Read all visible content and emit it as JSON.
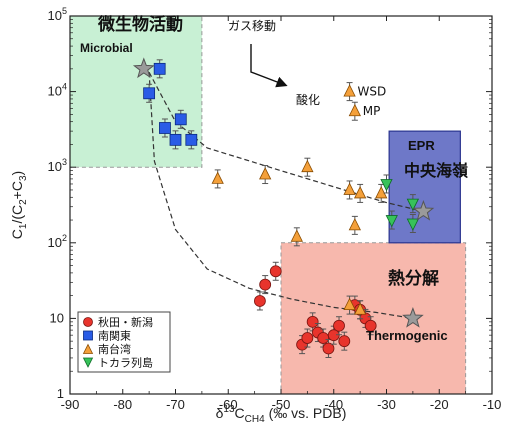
{
  "chart_data": {
    "type": "scatter",
    "xlabel": {
      "main": "δ",
      "sup": "13",
      "mid": "C",
      "sub": "CH4",
      "tail": " (‰ vs. PDB)"
    },
    "ylabel": {
      "main": "C",
      "sub1": "1",
      "mid": "/(C",
      "sub2": "2",
      "mid2": "+C",
      "sub3": "3",
      "tail": ")"
    },
    "xlim": [
      -90,
      -10
    ],
    "ylim": [
      1,
      100000
    ],
    "yscale": "log",
    "x_ticks": [
      -90,
      -80,
      -70,
      -60,
      -50,
      -40,
      -30,
      -20,
      -10
    ],
    "y_ticks": [
      {
        "value": 1,
        "base": "1",
        "exp": ""
      },
      {
        "value": 10,
        "base": "10",
        "exp": ""
      },
      {
        "value": 100,
        "base": "10",
        "exp": "2"
      },
      {
        "value": 1000,
        "base": "10",
        "exp": "3"
      },
      {
        "value": 10000,
        "base": "10",
        "exp": "4"
      },
      {
        "value": 100000,
        "base": "10",
        "exp": "5"
      }
    ],
    "regions": [
      {
        "name": "microbial",
        "x": [
          -90,
          -65
        ],
        "y": [
          1000,
          100000
        ],
        "fill": "#c8f0d4",
        "stroke": "#999999",
        "label_jp": "微生物活動",
        "label_en": "Microbial"
      },
      {
        "name": "thermogenic",
        "x": [
          -50,
          -15
        ],
        "y": [
          1,
          100
        ],
        "fill": "#f7b8ad",
        "stroke": "#999999",
        "label_jp": "熱分解",
        "label_en": "Thermogenic"
      },
      {
        "name": "epr",
        "x": [
          -29.5,
          -16
        ],
        "y": [
          100,
          3000
        ],
        "fill": "#6e78c8",
        "stroke": "#2b3590",
        "label_en": "EPR",
        "label_jp": "中央海嶺"
      }
    ],
    "series": [
      {
        "name": "秋田・新潟",
        "marker": "circle",
        "color": "#e8342c",
        "points": [
          [
            -54,
            17
          ],
          [
            -53,
            28
          ],
          [
            -51,
            42
          ],
          [
            -46,
            4.5
          ],
          [
            -45,
            5.5
          ],
          [
            -44,
            9
          ],
          [
            -43,
            6.5
          ],
          [
            -42,
            5.5
          ],
          [
            -41,
            4
          ],
          [
            -40,
            6
          ],
          [
            -39,
            8
          ],
          [
            -38,
            5
          ],
          [
            -36,
            15
          ],
          [
            -35,
            13
          ],
          [
            -34,
            10
          ],
          [
            -33,
            8
          ]
        ]
      },
      {
        "name": "南関東",
        "marker": "square",
        "color": "#2a5ce6",
        "points": [
          [
            -73,
            20000
          ],
          [
            -75,
            9500
          ],
          [
            -72,
            3300
          ],
          [
            -70,
            2300
          ],
          [
            -69,
            4300
          ],
          [
            -67,
            2300
          ]
        ]
      },
      {
        "name": "南台湾",
        "marker": "triangle-up",
        "color": "#f4a03a",
        "points": [
          [
            -62,
            700
          ],
          [
            -53,
            800
          ],
          [
            -45,
            1000
          ],
          [
            -37,
            500
          ],
          [
            -35,
            450
          ],
          [
            -31,
            450
          ],
          [
            -36,
            170
          ],
          [
            -47,
            120
          ],
          [
            -37,
            15
          ],
          [
            -35,
            13
          ],
          [
            -37,
            10000
          ],
          [
            -36,
            5500
          ]
        ]
      },
      {
        "name": "トカラ列島",
        "marker": "triangle-down",
        "color": "#37c25a",
        "points": [
          [
            -30,
            600
          ],
          [
            -25,
            330
          ],
          [
            -25,
            180
          ],
          [
            -29,
            200
          ]
        ]
      }
    ],
    "stars": [
      {
        "x": -76,
        "y": 20000
      },
      {
        "x": -23,
        "y": 260
      },
      {
        "x": -25,
        "y": 10
      }
    ],
    "curves": [
      {
        "points": [
          [
            -75,
            18000
          ],
          [
            -70,
            4000
          ],
          [
            -64,
            1800
          ],
          [
            -50,
            900
          ],
          [
            -38,
            500
          ],
          [
            -30,
            340
          ],
          [
            -23,
            260
          ]
        ]
      },
      {
        "points": [
          [
            -75,
            18000
          ],
          [
            -74,
            1200
          ],
          [
            -70,
            150
          ],
          [
            -64,
            45
          ],
          [
            -56,
            25
          ],
          [
            -48,
            18
          ],
          [
            -40,
            14
          ],
          [
            -32,
            12
          ],
          [
            -25,
            10
          ]
        ]
      }
    ],
    "annotations": {
      "gas_migration": "ガス移動",
      "oxidation": "酸化",
      "wsd": "WSD",
      "mp": "MP"
    },
    "legend_position": "bottom-left"
  }
}
